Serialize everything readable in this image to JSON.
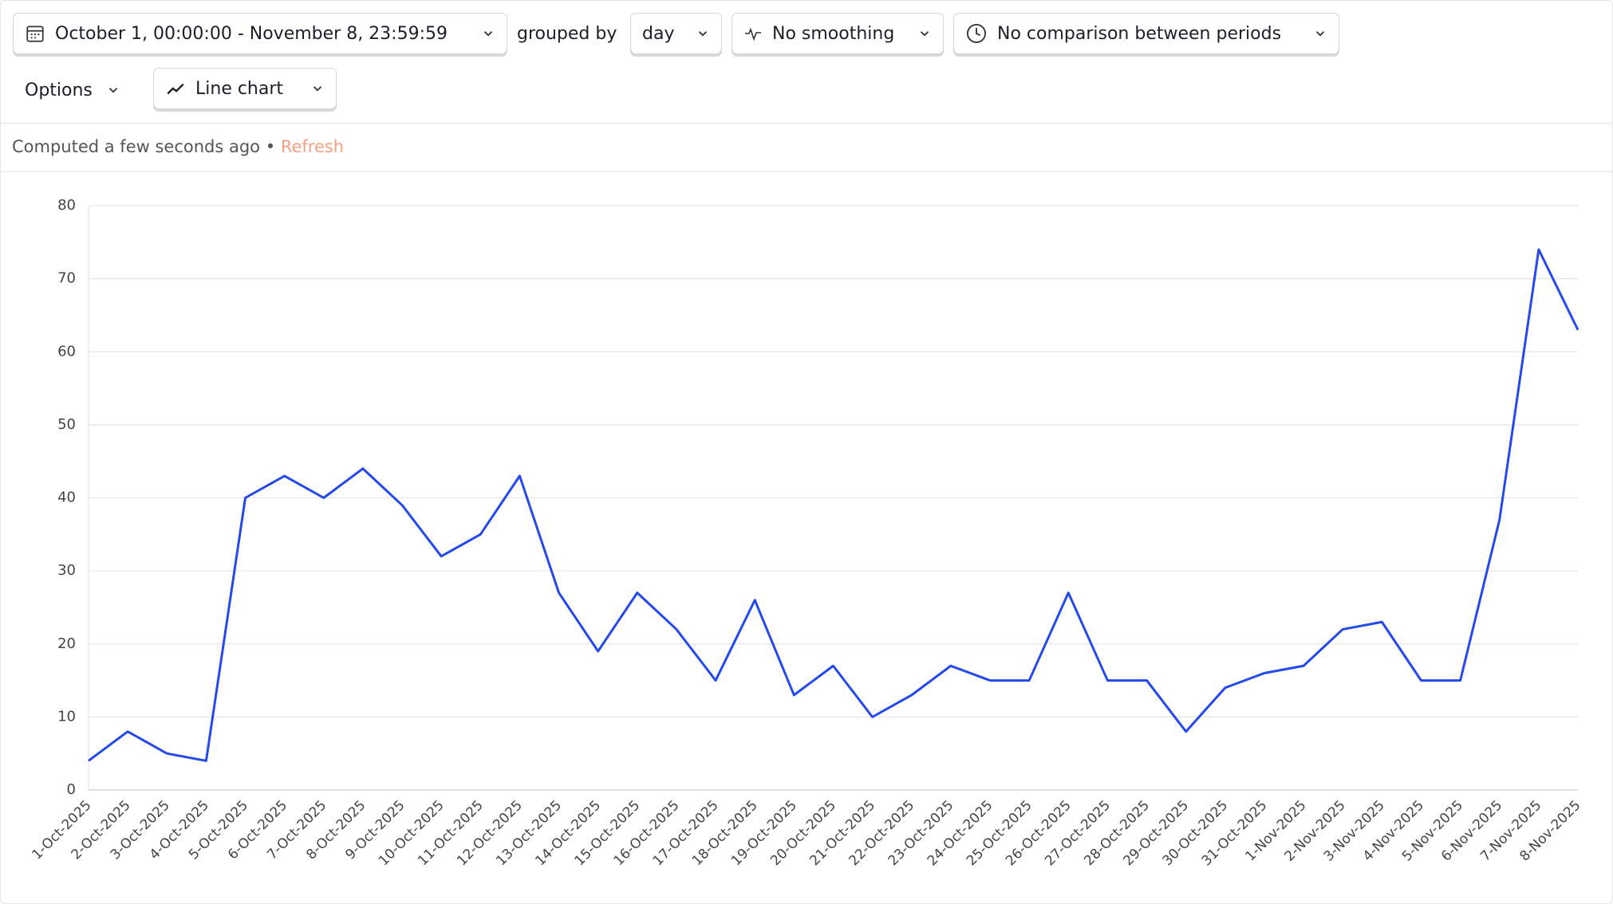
{
  "toolbar": {
    "date_range": "October 1, 00:00:00 - November 8, 23:59:59",
    "grouped_by_label": "grouped by",
    "interval": "day",
    "smoothing": "No smoothing",
    "comparison": "No comparison between periods",
    "options": "Options",
    "chart_kind": "Line chart"
  },
  "status": {
    "computed": "Computed a few seconds ago",
    "separator": "•",
    "refresh": "Refresh"
  },
  "chart_data": {
    "type": "line",
    "color": "#2349ea",
    "grid": true,
    "categories": [
      "1-Oct-2025",
      "2-Oct-2025",
      "3-Oct-2025",
      "4-Oct-2025",
      "5-Oct-2025",
      "6-Oct-2025",
      "7-Oct-2025",
      "8-Oct-2025",
      "9-Oct-2025",
      "10-Oct-2025",
      "11-Oct-2025",
      "12-Oct-2025",
      "13-Oct-2025",
      "14-Oct-2025",
      "15-Oct-2025",
      "16-Oct-2025",
      "17-Oct-2025",
      "18-Oct-2025",
      "19-Oct-2025",
      "20-Oct-2025",
      "21-Oct-2025",
      "22-Oct-2025",
      "23-Oct-2025",
      "24-Oct-2025",
      "25-Oct-2025",
      "26-Oct-2025",
      "27-Oct-2025",
      "28-Oct-2025",
      "29-Oct-2025",
      "30-Oct-2025",
      "31-Oct-2025",
      "1-Nov-2025",
      "2-Nov-2025",
      "3-Nov-2025",
      "4-Nov-2025",
      "5-Nov-2025",
      "6-Nov-2025",
      "7-Nov-2025",
      "8-Nov-2025"
    ],
    "values": [
      4,
      8,
      5,
      4,
      40,
      43,
      40,
      44,
      39,
      32,
      35,
      43,
      27,
      19,
      27,
      22,
      15,
      26,
      13,
      17,
      10,
      13,
      17,
      15,
      15,
      27,
      15,
      15,
      8,
      14,
      16,
      17,
      22,
      23,
      15,
      15,
      37,
      74,
      63
    ],
    "ylim": [
      0,
      80
    ],
    "yticks": [
      0,
      10,
      20,
      30,
      40,
      50,
      60,
      70,
      80
    ]
  }
}
